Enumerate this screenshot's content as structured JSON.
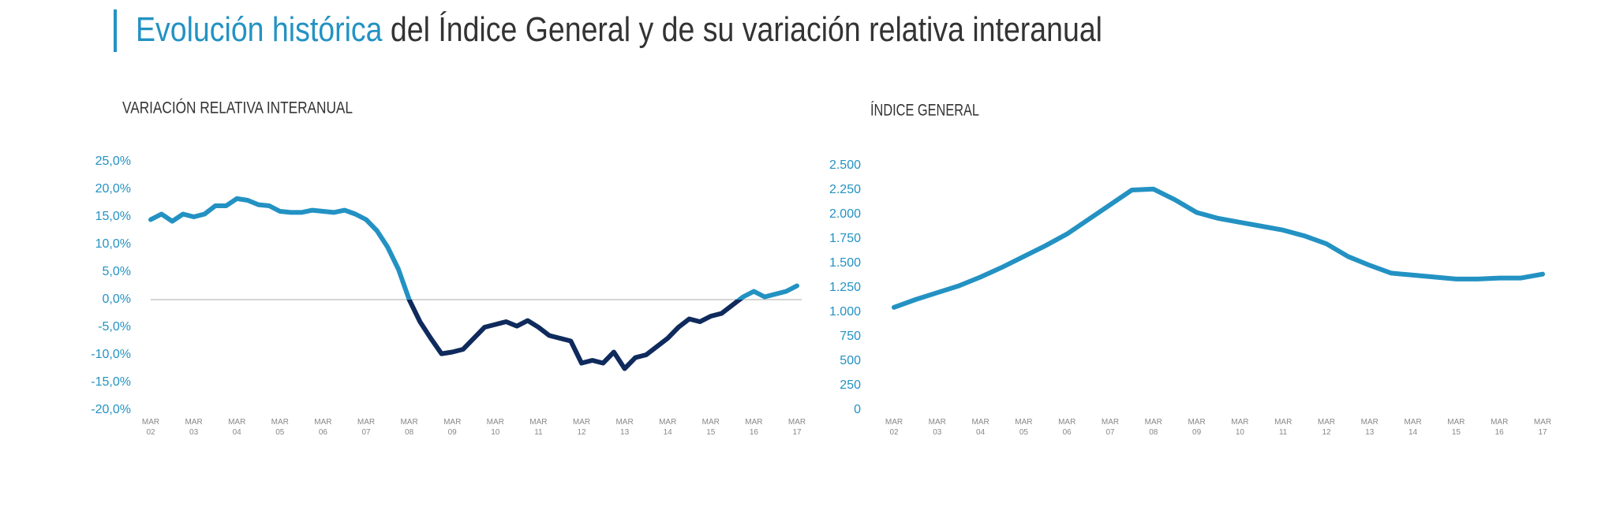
{
  "header": {
    "highlight": "Evolución histórica",
    "rest": " del Índice General y de su variación relativa interanual"
  },
  "chart_data": [
    {
      "type": "line",
      "title": "VARIACIÓN RELATIVA INTERANUAL",
      "color": "#2392c3",
      "negative_color": "#0f2a5c",
      "x": [
        0,
        3,
        6,
        9,
        12,
        15,
        18,
        21,
        24,
        27,
        30,
        33,
        36,
        39,
        42,
        45,
        48,
        51,
        54,
        57,
        60,
        63,
        66,
        69,
        72,
        75,
        78,
        81,
        84,
        87,
        90,
        93,
        96,
        99,
        102,
        105,
        108,
        111,
        114,
        117,
        120,
        123,
        126,
        129,
        132,
        135,
        138,
        141,
        144,
        147,
        150,
        153,
        156,
        159,
        162,
        165,
        168,
        171,
        174,
        177,
        180
      ],
      "values": [
        14.5,
        15.5,
        14.2,
        15.5,
        15,
        15.5,
        17,
        17,
        18.3,
        18,
        17.2,
        17,
        16,
        15.8,
        15.8,
        16.2,
        16,
        15.8,
        16.2,
        15.5,
        14.5,
        12.5,
        9.5,
        5.5,
        0,
        -4,
        -7,
        -9.8,
        -9.5,
        -9,
        -7,
        -5,
        -4.5,
        -4,
        -4.8,
        -3.8,
        -5,
        -6.5,
        -7,
        -7.5,
        -11.5,
        -11,
        -11.5,
        -9.5,
        -12.5,
        -10.5,
        -10,
        -8.5,
        -7,
        -5,
        -3.5,
        -4,
        -3,
        -2.5,
        -1,
        0.5,
        1.5,
        0.5,
        1,
        1.5,
        2.5
      ],
      "xlim": [
        0,
        180
      ],
      "xticks": [
        {
          "value": 0,
          "label": "MAR 02"
        },
        {
          "value": 12,
          "label": "MAR 03"
        },
        {
          "value": 24,
          "label": "MAR 04"
        },
        {
          "value": 36,
          "label": "MAR 05"
        },
        {
          "value": 48,
          "label": "MAR 06"
        },
        {
          "value": 60,
          "label": "MAR 07"
        },
        {
          "value": 72,
          "label": "MAR 08"
        },
        {
          "value": 84,
          "label": "MAR 09"
        },
        {
          "value": 96,
          "label": "MAR 10"
        },
        {
          "value": 108,
          "label": "MAR 11"
        },
        {
          "value": 120,
          "label": "MAR 12"
        },
        {
          "value": 132,
          "label": "MAR 13"
        },
        {
          "value": 144,
          "label": "MAR 14"
        },
        {
          "value": 156,
          "label": "MAR 15"
        },
        {
          "value": 168,
          "label": "MAR 16"
        },
        {
          "value": 180,
          "label": "MAR 17"
        }
      ],
      "ylim": [
        -20,
        25
      ],
      "yticks": [
        {
          "value": 25,
          "label": "25,0%"
        },
        {
          "value": 20,
          "label": "20,0%"
        },
        {
          "value": 15,
          "label": "15,0%"
        },
        {
          "value": 10,
          "label": "10,0%"
        },
        {
          "value": 5,
          "label": "5,0%"
        },
        {
          "value": 0,
          "label": "0,0%"
        },
        {
          "value": -5,
          "label": "-5,0%"
        },
        {
          "value": -10,
          "label": "-10,0%"
        },
        {
          "value": -15,
          "label": "-15,0%"
        },
        {
          "value": -20,
          "label": "-20,0%"
        }
      ],
      "zero_line": true
    },
    {
      "type": "line",
      "title": "ÍNDICE GENERAL",
      "color": "#2392c3",
      "x": [
        0,
        6,
        12,
        18,
        24,
        30,
        36,
        42,
        48,
        54,
        60,
        66,
        72,
        78,
        84,
        90,
        96,
        102,
        108,
        114,
        120,
        126,
        132,
        138,
        144,
        150,
        156,
        162,
        168,
        174,
        180
      ],
      "values": [
        1050,
        1130,
        1200,
        1270,
        1360,
        1460,
        1570,
        1680,
        1800,
        1950,
        2100,
        2250,
        2260,
        2150,
        2020,
        1960,
        1920,
        1880,
        1840,
        1780,
        1700,
        1570,
        1480,
        1400,
        1380,
        1360,
        1340,
        1340,
        1350,
        1350,
        1390
      ],
      "xlim": [
        0,
        180
      ],
      "xticks": [
        {
          "value": 0,
          "label": "MAR 02"
        },
        {
          "value": 12,
          "label": "MAR 03"
        },
        {
          "value": 24,
          "label": "MAR 04"
        },
        {
          "value": 36,
          "label": "MAR 05"
        },
        {
          "value": 48,
          "label": "MAR 06"
        },
        {
          "value": 60,
          "label": "MAR 07"
        },
        {
          "value": 72,
          "label": "MAR 08"
        },
        {
          "value": 84,
          "label": "MAR 09"
        },
        {
          "value": 96,
          "label": "MAR 10"
        },
        {
          "value": 108,
          "label": "MAR 11"
        },
        {
          "value": 120,
          "label": "MAR 12"
        },
        {
          "value": 132,
          "label": "MAR 13"
        },
        {
          "value": 144,
          "label": "MAR 14"
        },
        {
          "value": 156,
          "label": "MAR 15"
        },
        {
          "value": 168,
          "label": "MAR 16"
        },
        {
          "value": 180,
          "label": "MAR 17"
        }
      ],
      "ylim": [
        0,
        2500
      ],
      "yticks": [
        {
          "value": 2500,
          "label": "2.500"
        },
        {
          "value": 2250,
          "label": "2.250"
        },
        {
          "value": 2000,
          "label": "2.000"
        },
        {
          "value": 1750,
          "label": "1.750"
        },
        {
          "value": 1500,
          "label": "1.500"
        },
        {
          "value": 1250,
          "label": "1.250"
        },
        {
          "value": 1000,
          "label": "1.000"
        },
        750,
        500,
        250,
        0
      ],
      "zero_line": false
    }
  ]
}
